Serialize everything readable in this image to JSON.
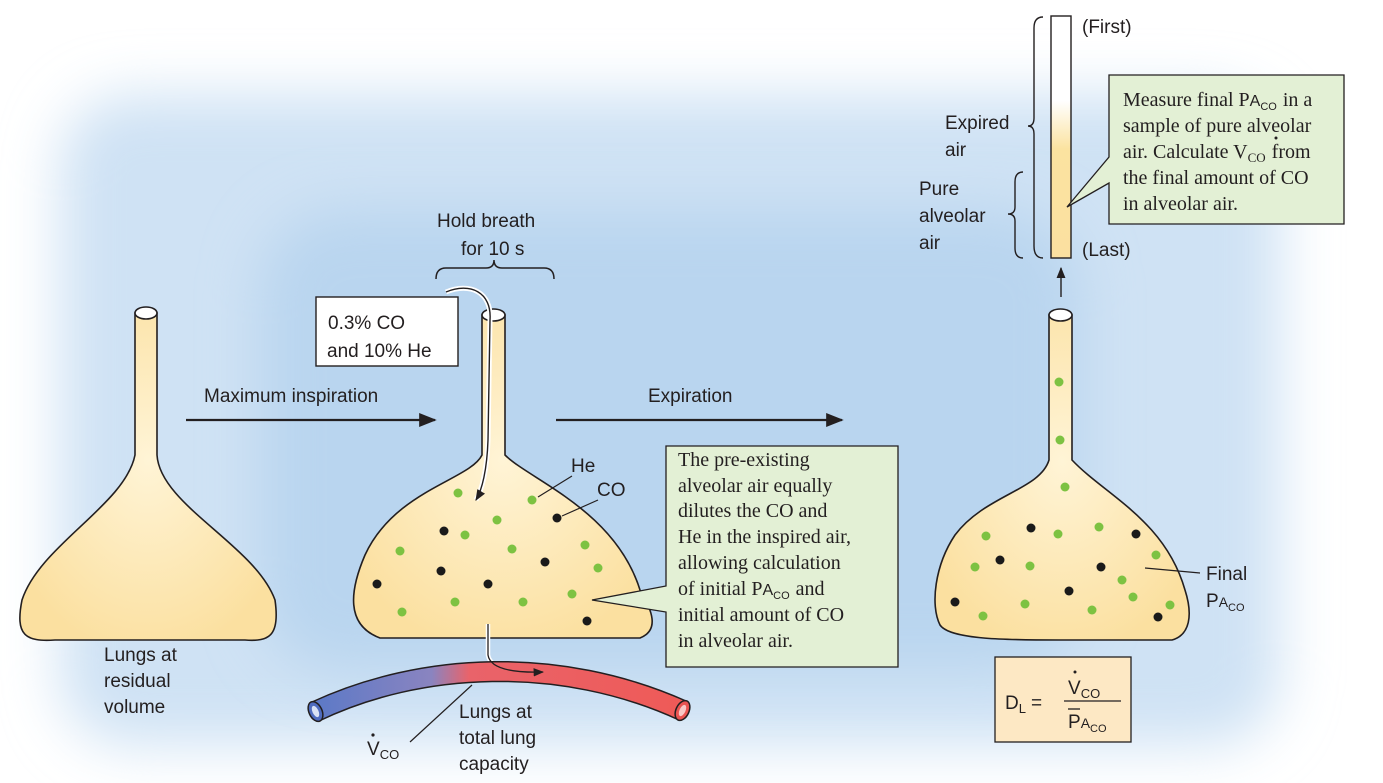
{
  "labels": {
    "maximum_inspiration": "Maximum inspiration",
    "expiration": "Expiration",
    "hold_breath_line1": "Hold breath",
    "hold_breath_line2": "for 10 s",
    "inspired_gas_line1": "0.3% CO",
    "inspired_gas_line2": "and 10% He",
    "residual_volume": [
      "Lungs at",
      "residual",
      "volume"
    ],
    "total_lung_capacity": [
      "Lungs at",
      "total lung",
      "capacity"
    ],
    "he": "He",
    "co": "CO",
    "v_co": "V",
    "v_co_sub": "CO",
    "first": "(First)",
    "last": "(Last)",
    "expired_air": [
      "Expired",
      "air"
    ],
    "pure_alveolar_air": [
      "Pure",
      "alveolar",
      "air"
    ],
    "final_label": "Final",
    "p_a_co_p": "P",
    "p_a_co_a": "A",
    "p_a_co_sub": "CO"
  },
  "callouts": {
    "dilution": [
      "The pre-existing",
      "alveolar air equally",
      "dilutes the CO and",
      "He in the inspired air,",
      "allowing calculation",
      "of initial P",
      "initial amount of CO",
      "in alveolar air."
    ],
    "dilution_line6_tail": "and",
    "measure": {
      "line1_pre": "Measure final P",
      "line1_post": "in a",
      "line2": "sample of pure alveolar",
      "line3_pre": "air.  Calculate V",
      "line3_post": "from",
      "line4": "the final amount of CO",
      "line5": "in alveolar air."
    }
  },
  "formula": {
    "lhs": "D",
    "lhs_sub": "L",
    "equals": "=",
    "numerator": "V",
    "numerator_sub": "CO",
    "denominator": "P",
    "denominator_a": "A",
    "denominator_sub": "CO"
  },
  "colors": {
    "lung_fill": "#fbe3a0",
    "lung_stroke": "#231f20",
    "helium_dot": "#7dc242",
    "co_dot": "#1a1a1a",
    "callout_fill": "#e3f0d5",
    "formula_fill": "#fde8c4",
    "background_glow": "#c6ddf2",
    "vessel_venous": "#5b79c7",
    "vessel_arterial": "#ee5a58"
  }
}
